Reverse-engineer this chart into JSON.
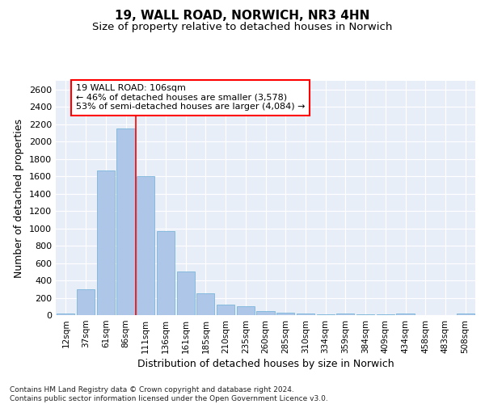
{
  "title1": "19, WALL ROAD, NORWICH, NR3 4HN",
  "title2": "Size of property relative to detached houses in Norwich",
  "xlabel": "Distribution of detached houses by size in Norwich",
  "ylabel": "Number of detached properties",
  "categories": [
    "12sqm",
    "37sqm",
    "61sqm",
    "86sqm",
    "111sqm",
    "136sqm",
    "161sqm",
    "185sqm",
    "210sqm",
    "235sqm",
    "260sqm",
    "285sqm",
    "310sqm",
    "334sqm",
    "359sqm",
    "384sqm",
    "409sqm",
    "434sqm",
    "458sqm",
    "483sqm",
    "508sqm"
  ],
  "values": [
    20,
    300,
    1670,
    2150,
    1600,
    970,
    500,
    248,
    120,
    100,
    48,
    30,
    15,
    10,
    20,
    8,
    5,
    20,
    0,
    0,
    20
  ],
  "bar_color": "#aec6e8",
  "bar_edgecolor": "#6aaed6",
  "redline_x": 3.5,
  "annotation_text": "19 WALL ROAD: 106sqm\n← 46% of detached houses are smaller (3,578)\n53% of semi-detached houses are larger (4,084) →",
  "ylim": [
    0,
    2700
  ],
  "yticks": [
    0,
    200,
    400,
    600,
    800,
    1000,
    1200,
    1400,
    1600,
    1800,
    2000,
    2200,
    2400,
    2600
  ],
  "background_color": "#e8eef8",
  "grid_color": "#ffffff",
  "footer1": "Contains HM Land Registry data © Crown copyright and database right 2024.",
  "footer2": "Contains public sector information licensed under the Open Government Licence v3.0."
}
